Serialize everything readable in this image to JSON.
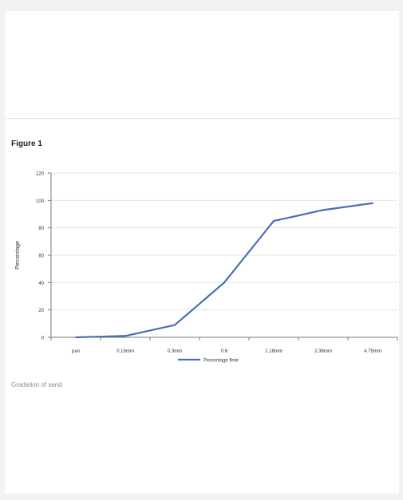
{
  "figure_label": "Figure 1",
  "caption": "Gradation of sand",
  "colors": {
    "series_line": "#4a6fb5",
    "axis": "#7a7a7a",
    "tick_text": "#333333",
    "grid": "#e4e4e4"
  },
  "chart_data": {
    "type": "line",
    "title": "Figure 1",
    "xlabel": "",
    "ylabel": "Percentage",
    "categories": [
      "pan",
      "0.15mm",
      "0.3mm",
      "0.6",
      "1.18mm",
      "2.36mm",
      "4.75mm"
    ],
    "y_ticks": [
      "0",
      "20",
      "40",
      "60",
      "80",
      "100",
      "120"
    ],
    "ylim": [
      0,
      120
    ],
    "grid": true,
    "legend_position": "bottom",
    "series": [
      {
        "name": "Percentage finer",
        "values": [
          0,
          1,
          9,
          40,
          85,
          93,
          98
        ]
      }
    ]
  }
}
